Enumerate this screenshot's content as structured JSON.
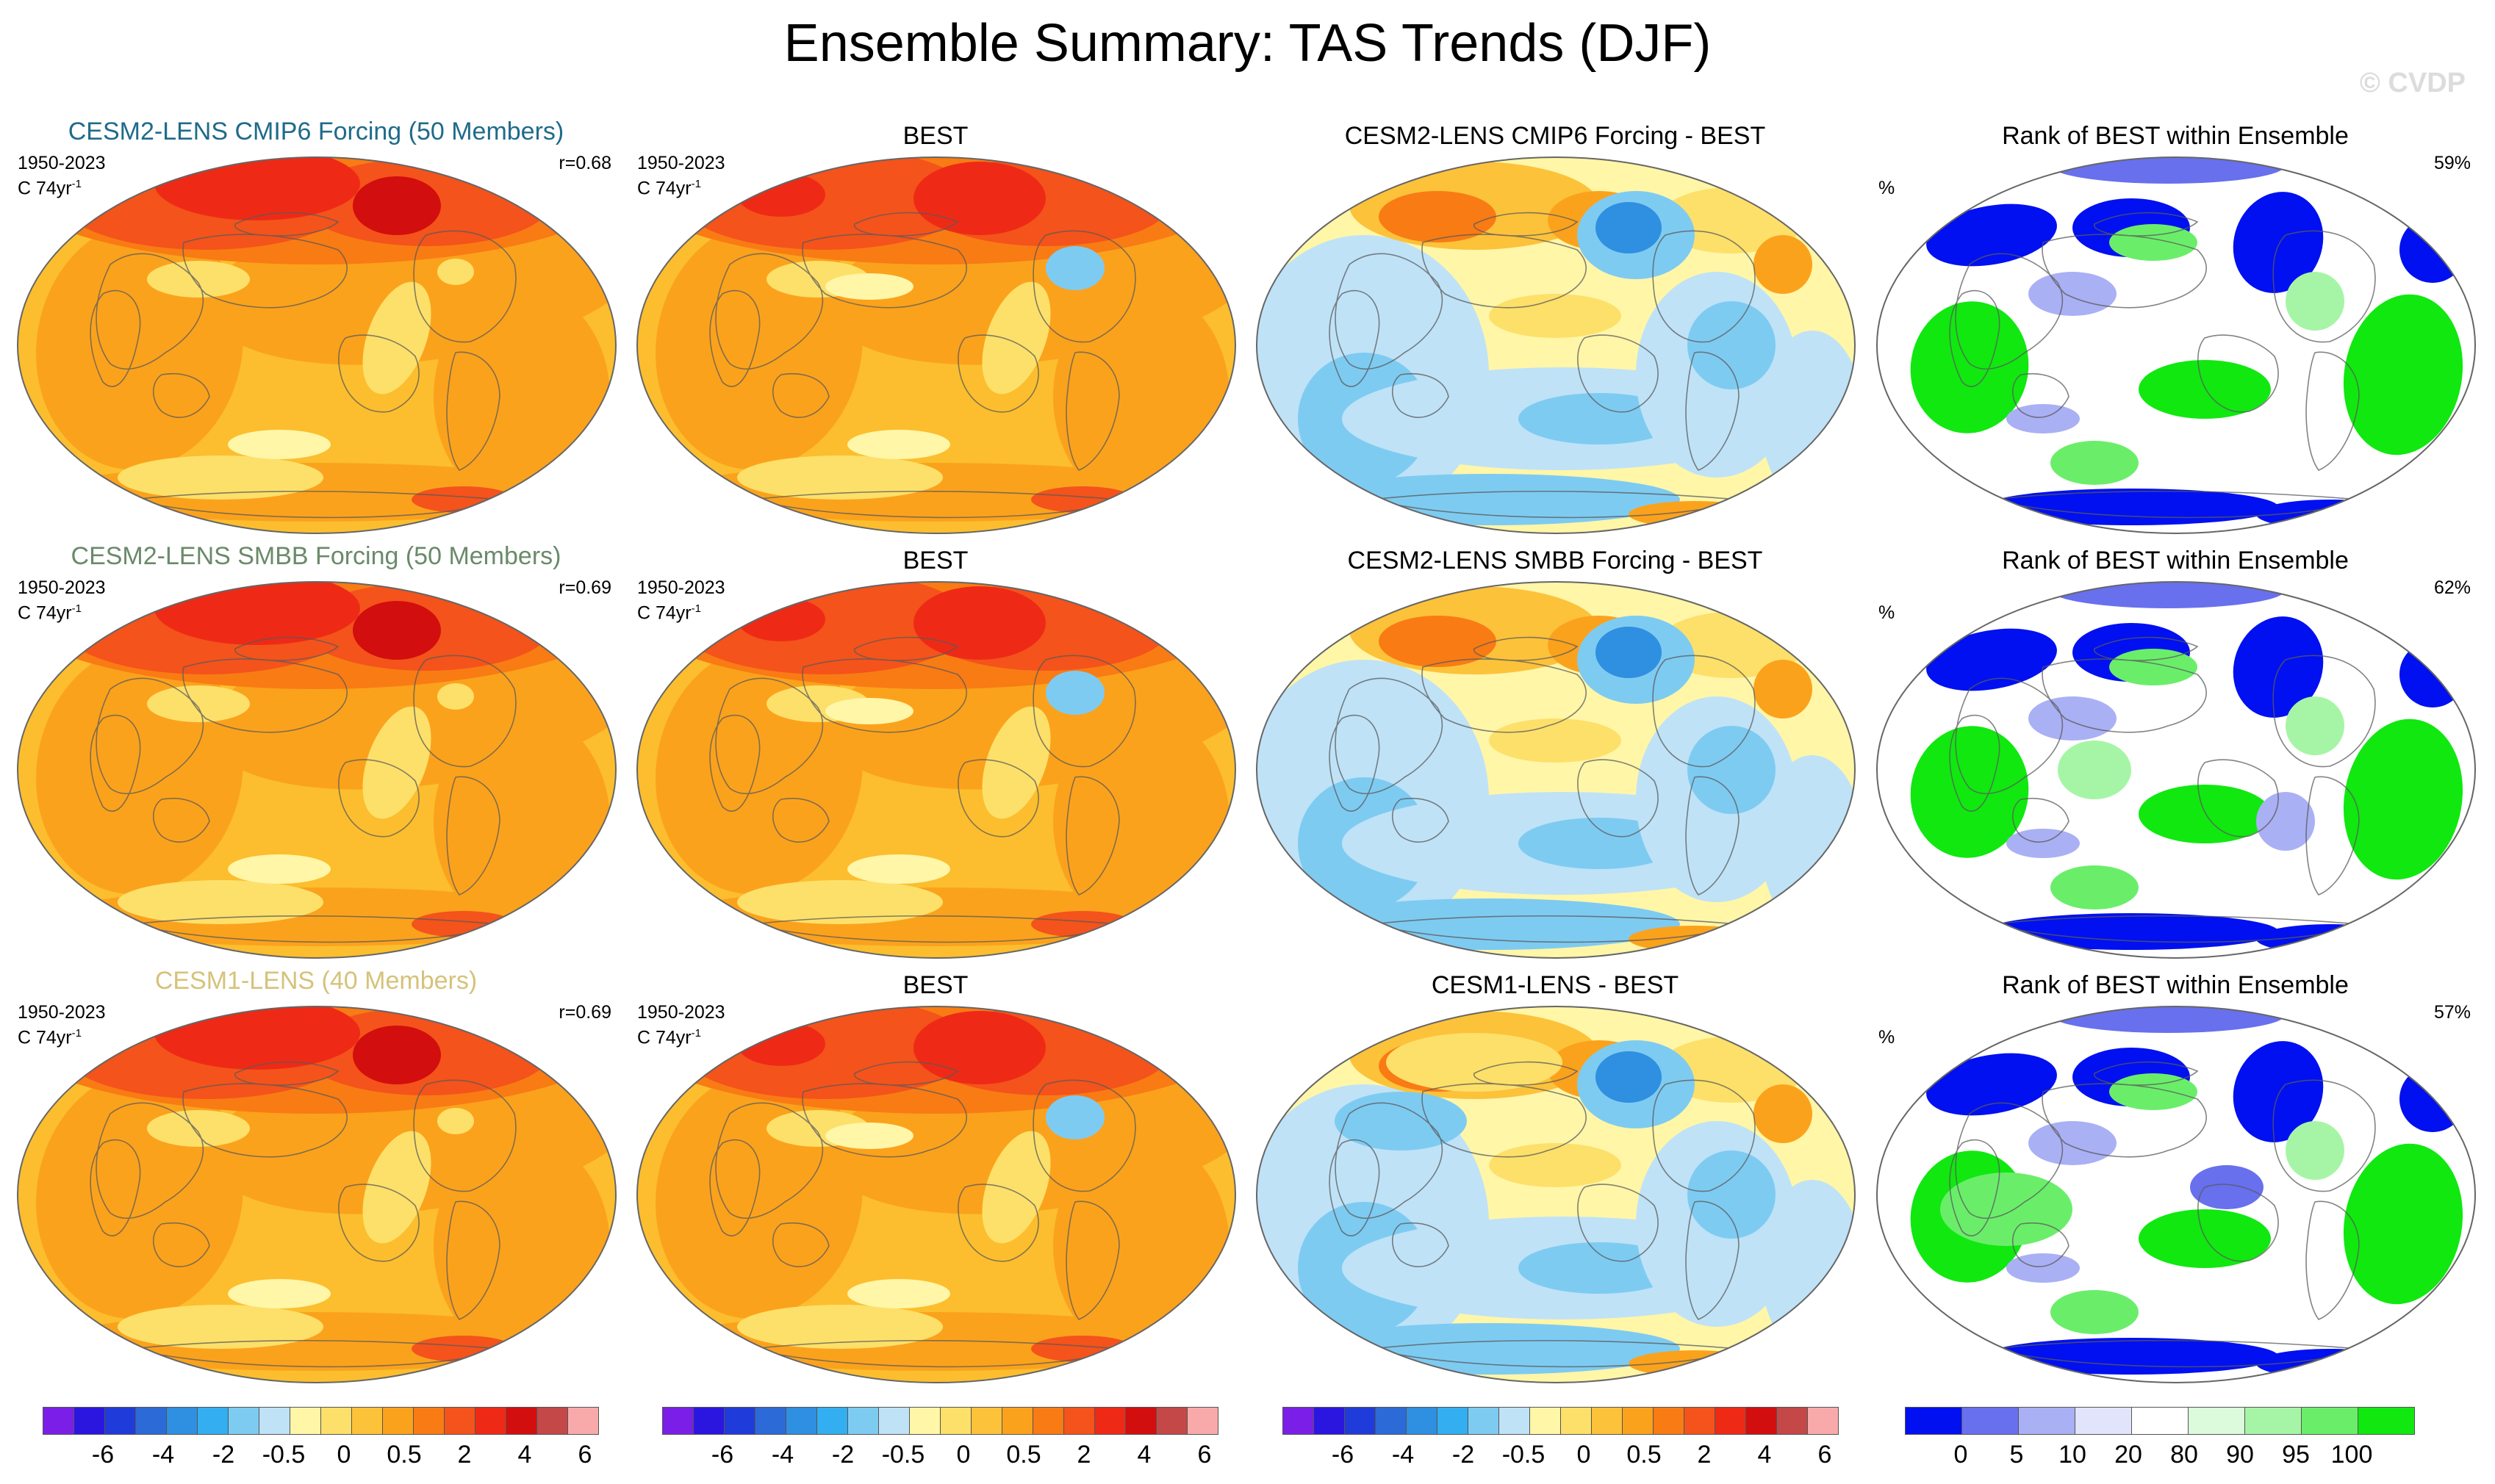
{
  "page": {
    "title": "Ensemble Summary: TAS Trends (DJF)",
    "watermark": "© CVDP"
  },
  "rows": [
    {
      "ensemble": {
        "title": "CESM2-LENS CMIP6 Forcing (50 Members)",
        "title_color": "#1f6b8a",
        "period": "1950-2023",
        "units": "C 74yr",
        "units_exp": "-1",
        "corr": "r=0.68"
      },
      "obs": {
        "title": "BEST",
        "period": "1950-2023",
        "units": "C 74yr",
        "units_exp": "-1"
      },
      "diff": {
        "title": "CESM2-LENS CMIP6 Forcing - BEST"
      },
      "rank": {
        "title": "Rank of BEST within Ensemble",
        "unit": "%",
        "pct": "59%"
      }
    },
    {
      "ensemble": {
        "title": "CESM2-LENS SMBB Forcing (50 Members)",
        "title_color": "#6a8a6a",
        "period": "1950-2023",
        "units": "C 74yr",
        "units_exp": "-1",
        "corr": "r=0.69"
      },
      "obs": {
        "title": "BEST",
        "period": "1950-2023",
        "units": "C 74yr",
        "units_exp": "-1"
      },
      "diff": {
        "title": "CESM2-LENS SMBB Forcing - BEST"
      },
      "rank": {
        "title": "Rank of BEST within Ensemble",
        "unit": "%",
        "pct": "62%"
      }
    },
    {
      "ensemble": {
        "title": "CESM1-LENS (40 Members)",
        "title_color": "#d6c27a",
        "period": "1950-2023",
        "units": "C 74yr",
        "units_exp": "-1",
        "corr": "r=0.69"
      },
      "obs": {
        "title": "BEST",
        "period": "1950-2023",
        "units": "C 74yr",
        "units_exp": "-1"
      },
      "diff": {
        "title": "CESM1-LENS - BEST"
      },
      "rank": {
        "title": "Rank of BEST within Ensemble",
        "unit": "%",
        "pct": "57%"
      }
    }
  ],
  "colorbars": {
    "trend": {
      "colors": [
        "#7b1ee8",
        "#2b16e0",
        "#1f3bd9",
        "#2c6ad8",
        "#2f8fe0",
        "#33aef0",
        "#7ecbf2",
        "#bfe2f7",
        "#fff6a8",
        "#fde06a",
        "#fcc23a",
        "#fba21c",
        "#f97b14",
        "#f4531b",
        "#ee2a16",
        "#d20e0e",
        "#c44848",
        "#f8aaaa"
      ],
      "labels": [
        "-6",
        "-4",
        "-2",
        "-0.5",
        "0",
        "0.5",
        "2",
        "4",
        "6"
      ]
    },
    "rank": {
      "colors": [
        "#0010f0",
        "#6870ee",
        "#aab0f4",
        "#e1e4fa",
        "#ffffff",
        "#dcfbdc",
        "#a6f5a6",
        "#6aee6a",
        "#10e810"
      ],
      "labels": [
        "0",
        "5",
        "10",
        "20",
        "80",
        "90",
        "95",
        "100"
      ]
    }
  }
}
